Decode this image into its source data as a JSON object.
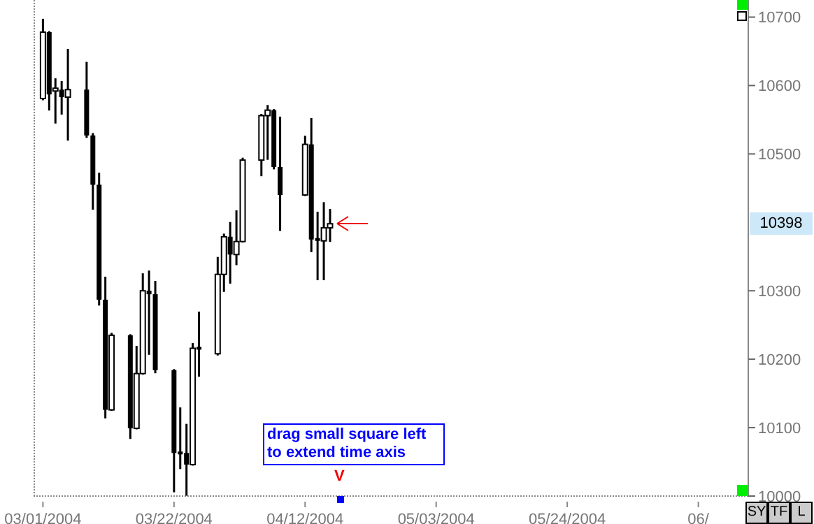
{
  "chart_data": {
    "type": "candlestick",
    "color": "#000000",
    "x": [
      "2004-03-01",
      "2004-03-02",
      "2004-03-03",
      "2004-03-04",
      "2004-03-05",
      "2004-03-08",
      "2004-03-09",
      "2004-03-10",
      "2004-03-11",
      "2004-03-12",
      "2004-03-15",
      "2004-03-16",
      "2004-03-17",
      "2004-03-18",
      "2004-03-19",
      "2004-03-22",
      "2004-03-23",
      "2004-03-24",
      "2004-03-25",
      "2004-03-26",
      "2004-03-29",
      "2004-03-30",
      "2004-03-31",
      "2004-04-01",
      "2004-04-02",
      "2004-04-05",
      "2004-04-06",
      "2004-04-07",
      "2004-04-08",
      "2004-04-12",
      "2004-04-13",
      "2004-04-14",
      "2004-04-15",
      "2004-04-16"
    ],
    "ohlc": [
      [
        10581,
        10696,
        10580,
        10678
      ],
      [
        10678,
        10678,
        10565,
        10587
      ],
      [
        10590,
        10609,
        10546,
        10594
      ],
      [
        10594,
        10605,
        10559,
        10583
      ],
      [
        10583,
        10652,
        10521,
        10594
      ],
      [
        10594,
        10633,
        10525,
        10527
      ],
      [
        10527,
        10529,
        10420,
        10455
      ],
      [
        10455,
        10471,
        10280,
        10287
      ],
      [
        10287,
        10319,
        10115,
        10126
      ],
      [
        10126,
        10237,
        10126,
        10235
      ],
      [
        10235,
        10235,
        10085,
        10099
      ],
      [
        10099,
        10218,
        10099,
        10179
      ],
      [
        10179,
        10324,
        10179,
        10300
      ],
      [
        10300,
        10328,
        10208,
        10295
      ],
      [
        10295,
        10313,
        10181,
        10184
      ],
      [
        10184,
        10184,
        10007,
        10063
      ],
      [
        10063,
        10128,
        10041,
        10063
      ],
      [
        10063,
        10104,
        10002,
        10046
      ],
      [
        10046,
        10222,
        10046,
        10216
      ],
      [
        10216,
        10268,
        10176,
        10216
      ],
      [
        10208,
        10348,
        10207,
        10324
      ],
      [
        10324,
        10382,
        10300,
        10379
      ],
      [
        10379,
        10399,
        10312,
        10353
      ],
      [
        10353,
        10416,
        10339,
        10372
      ],
      [
        10372,
        10493,
        10372,
        10491
      ],
      [
        10491,
        10557,
        10469,
        10556
      ],
      [
        10556,
        10570,
        10493,
        10564
      ],
      [
        10564,
        10564,
        10479,
        10481
      ],
      [
        10481,
        10553,
        10389,
        10440
      ],
      [
        10440,
        10525,
        10440,
        10514
      ],
      [
        10514,
        10551,
        10358,
        10375
      ],
      [
        10375,
        10414,
        10317,
        10373
      ],
      [
        10373,
        10428,
        10317,
        10392
      ],
      [
        10392,
        10418,
        10373,
        10398
      ]
    ],
    "xlim": [
      "2004-02-28T12:00",
      "2004-06-22"
    ],
    "xticks": [
      {
        "value": "2004-03-01",
        "label": "03/01/2004"
      },
      {
        "value": "2004-03-22",
        "label": "03/22/2004"
      },
      {
        "value": "2004-04-12",
        "label": "04/12/2004"
      },
      {
        "value": "2004-05-03",
        "label": "05/03/2004"
      },
      {
        "value": "2004-05-24",
        "label": "05/24/2004"
      },
      {
        "value": "2004-06-14",
        "label": "06/"
      }
    ],
    "ylim": [
      10000,
      10725
    ],
    "yticks": [
      10000,
      10100,
      10200,
      10300,
      10500,
      10600,
      10700
    ],
    "annotations": [
      "drag small square left to extend time axis",
      "V",
      "10398",
      "SY",
      "TF",
      "L"
    ]
  }
}
